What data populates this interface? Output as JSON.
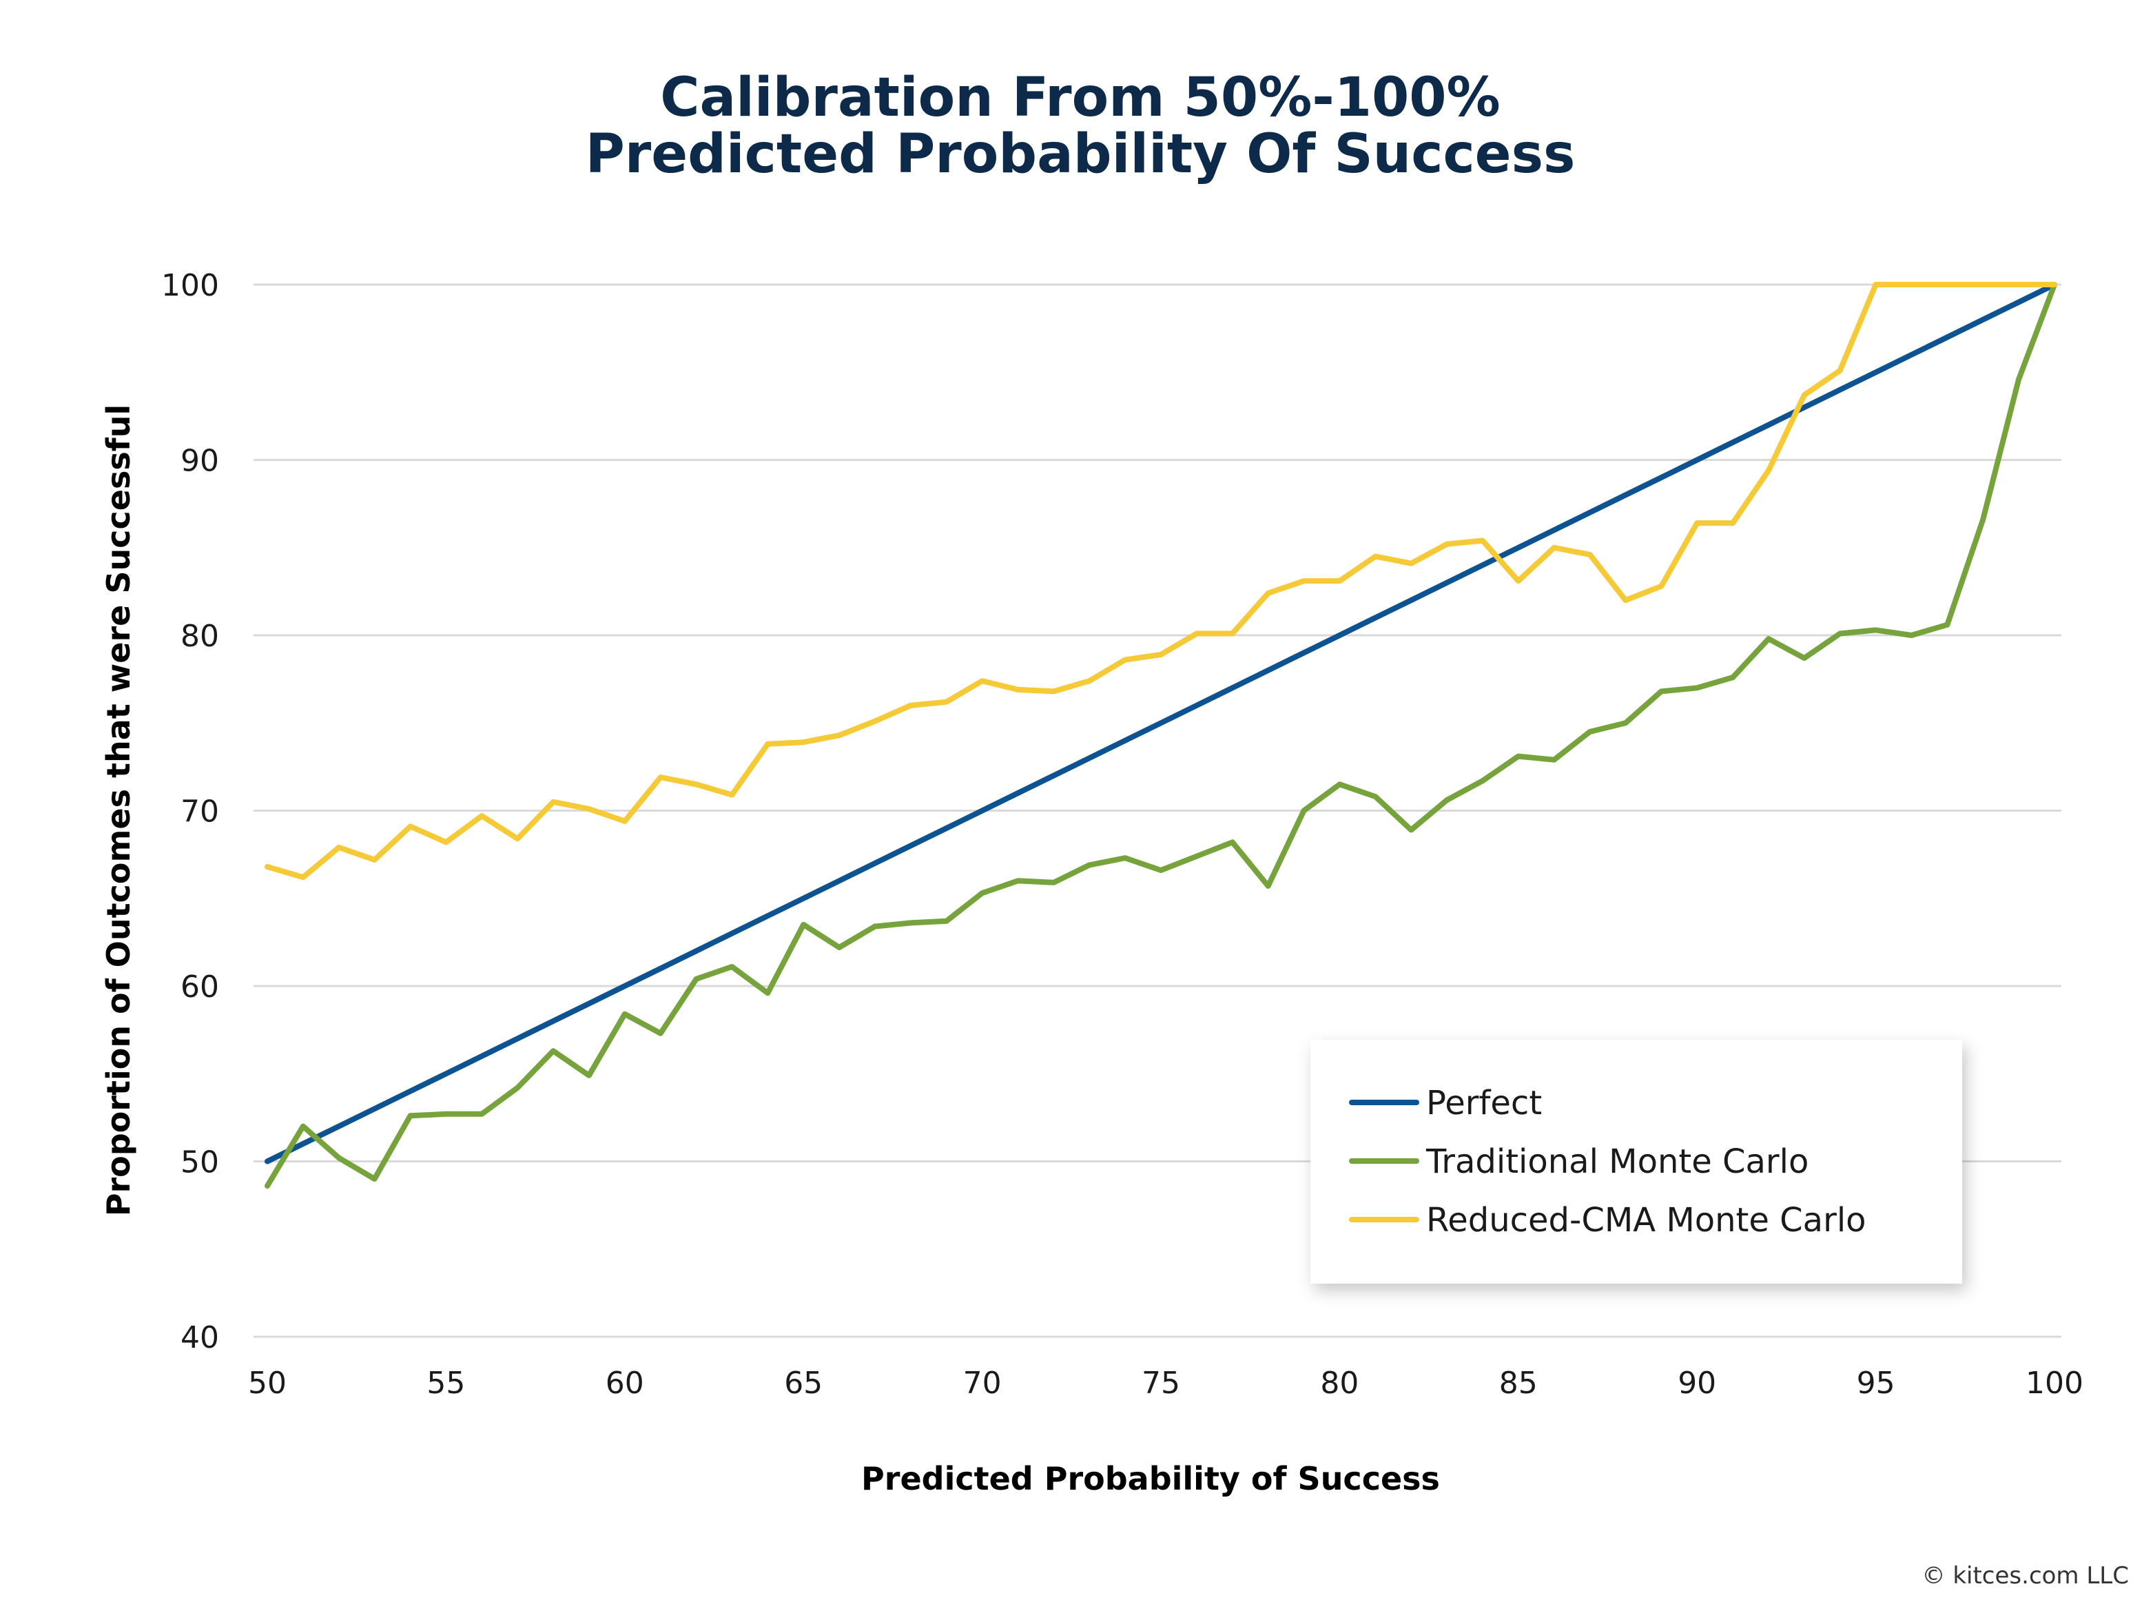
{
  "title_line1": "Calibration From 50%-100%",
  "title_line2": "Predicted Probability Of Success",
  "copyright": "© kitces.com LLC",
  "colors": {
    "title": "#0e2a4a",
    "grid": "#d9d9d9"
  },
  "chart_data": {
    "type": "line",
    "xlabel": "Predicted Probability of Success",
    "ylabel": "Proportion of Outcomes that were Successful",
    "xlim": [
      50,
      100
    ],
    "ylim": [
      40,
      100
    ],
    "xticks": [
      50,
      55,
      60,
      65,
      70,
      75,
      80,
      85,
      90,
      95,
      100
    ],
    "yticks": [
      40,
      50,
      60,
      70,
      80,
      90,
      100
    ],
    "grid": "horizontal",
    "legend_position": "lower-right",
    "x": [
      50,
      51,
      52,
      53,
      54,
      55,
      56,
      57,
      58,
      59,
      60,
      61,
      62,
      63,
      64,
      65,
      66,
      67,
      68,
      69,
      70,
      71,
      72,
      73,
      74,
      75,
      76,
      77,
      78,
      79,
      80,
      81,
      82,
      83,
      84,
      85,
      86,
      87,
      88,
      89,
      90,
      91,
      92,
      93,
      94,
      95,
      96,
      97,
      98,
      99,
      100
    ],
    "series": [
      {
        "name": "Perfect",
        "color": "#0d5392",
        "values": [
          50,
          51,
          52,
          53,
          54,
          55,
          56,
          57,
          58,
          59,
          60,
          61,
          62,
          63,
          64,
          65,
          66,
          67,
          68,
          69,
          70,
          71,
          72,
          73,
          74,
          75,
          76,
          77,
          78,
          79,
          80,
          81,
          82,
          83,
          84,
          85,
          86,
          87,
          88,
          89,
          90,
          91,
          92,
          93,
          94,
          95,
          96,
          97,
          98,
          99,
          100
        ]
      },
      {
        "name": "Traditional Monte Carlo",
        "color": "#76a33b",
        "values": [
          48.6,
          52.0,
          50.2,
          49.0,
          52.6,
          52.7,
          52.7,
          54.2,
          56.3,
          54.9,
          58.4,
          57.3,
          60.4,
          61.1,
          59.6,
          63.5,
          62.2,
          63.4,
          63.6,
          63.7,
          65.3,
          66.0,
          65.9,
          66.9,
          67.3,
          66.6,
          67.4,
          68.2,
          65.7,
          70.0,
          71.5,
          70.8,
          68.9,
          70.6,
          71.7,
          73.1,
          72.9,
          74.5,
          75.0,
          76.8,
          77.0,
          77.6,
          79.8,
          78.7,
          80.1,
          80.3,
          80.0,
          80.6,
          86.6,
          94.6,
          100
        ]
      },
      {
        "name": "Reduced-CMA Monte Carlo",
        "color": "#f6c936",
        "values": [
          66.8,
          66.2,
          67.9,
          67.2,
          69.1,
          68.2,
          69.7,
          68.4,
          70.5,
          70.1,
          69.4,
          71.9,
          71.5,
          70.9,
          73.8,
          73.9,
          74.3,
          75.1,
          76.0,
          76.2,
          77.4,
          76.9,
          76.8,
          77.4,
          78.6,
          78.9,
          80.1,
          80.1,
          82.4,
          83.1,
          83.1,
          84.5,
          84.1,
          85.2,
          85.4,
          83.1,
          85.0,
          84.6,
          82.0,
          82.8,
          86.4,
          86.4,
          89.4,
          93.7,
          95.1,
          100,
          100,
          100,
          100,
          100,
          100
        ]
      }
    ]
  }
}
